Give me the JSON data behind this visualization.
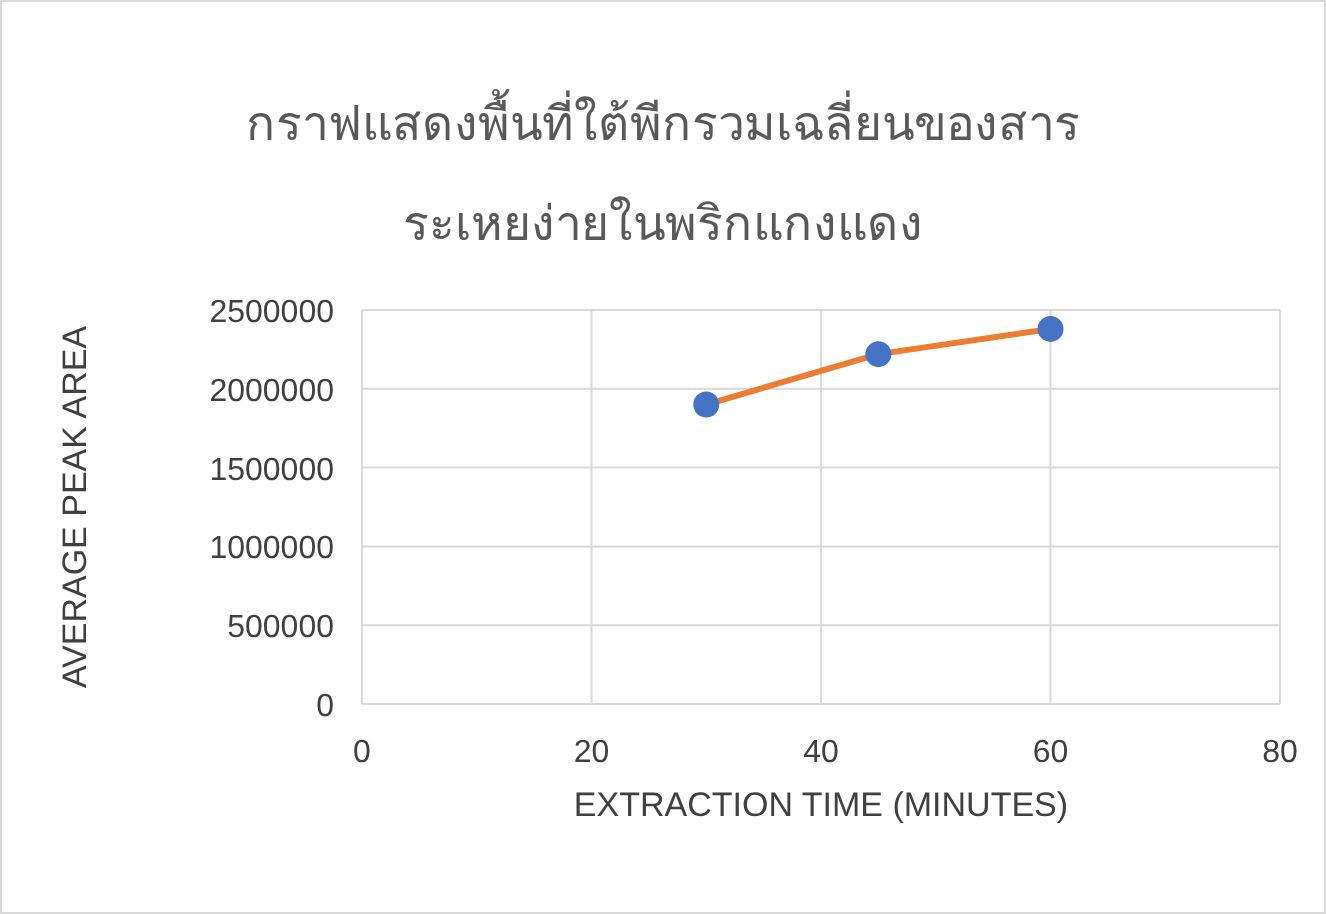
{
  "chart_data": {
    "type": "line",
    "title": "กราฟแสดงพื้นที่ใต้พีกรวมเฉลี่ยนของสาร ระเหยง่ายในพริกแกงแดง",
    "xlabel": "EXTRACTION TIME (MINUTES)",
    "ylabel": "AVERAGE PEAK AREA",
    "x": [
      30,
      45,
      60
    ],
    "series": [
      {
        "color": "#ed7d31",
        "marker": "none",
        "values": [
          1900000,
          2220000,
          2380000
        ]
      },
      {
        "type": "scatter",
        "color": "#4472c4",
        "marker": "circle",
        "values": [
          1900000,
          2220000,
          2380000
        ]
      }
    ],
    "xlim": [
      0,
      80
    ],
    "xticks": [
      0,
      20,
      40,
      60,
      80
    ],
    "ylim": [
      0,
      2500000
    ],
    "yticks": [
      0,
      500000,
      1000000,
      1500000,
      2000000,
      2500000
    ],
    "grid": true
  }
}
